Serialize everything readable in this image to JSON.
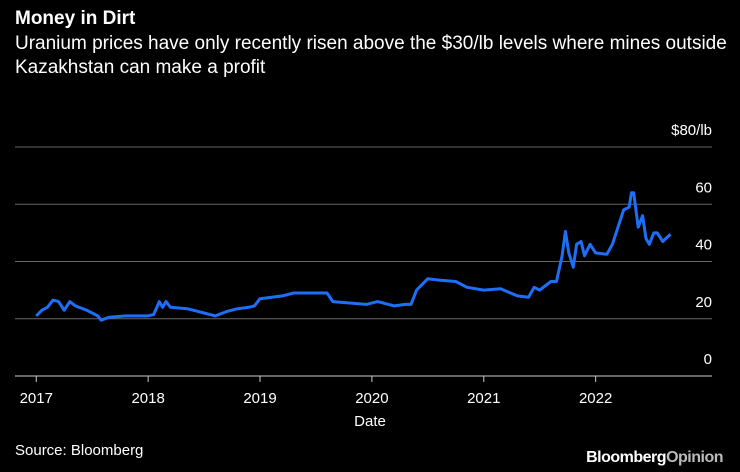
{
  "chart_data": {
    "type": "line",
    "title": "Money in Dirt",
    "subtitle": "Uranium prices have only recently risen above the $30/lb levels where mines outside Kazakhstan can make a profit",
    "x_label": "Date",
    "source": "Source: Bloomberg",
    "logo": [
      "Bloomberg",
      "Opinion"
    ],
    "color": "#1e6ff8",
    "grid": true,
    "x": [
      2017.0,
      2017.05,
      2017.1,
      2017.15,
      2017.2,
      2017.25,
      2017.3,
      2017.35,
      2017.45,
      2017.5,
      2017.55,
      2017.58,
      2017.65,
      2017.8,
      2017.9,
      2018.0,
      2018.05,
      2018.1,
      2018.13,
      2018.16,
      2018.2,
      2018.35,
      2018.5,
      2018.6,
      2018.7,
      2018.8,
      2018.9,
      2018.95,
      2019.0,
      2019.2,
      2019.3,
      2019.45,
      2019.6,
      2019.65,
      2019.8,
      2019.95,
      2020.05,
      2020.15,
      2020.2,
      2020.3,
      2020.35,
      2020.4,
      2020.5,
      2020.6,
      2020.75,
      2020.85,
      2021.0,
      2021.15,
      2021.3,
      2021.4,
      2021.45,
      2021.5,
      2021.6,
      2021.65,
      2021.7,
      2021.73,
      2021.76,
      2021.8,
      2021.83,
      2021.87,
      2021.9,
      2021.95,
      2022.0,
      2022.1,
      2022.15,
      2022.2,
      2022.25,
      2022.3,
      2022.32,
      2022.34,
      2022.38,
      2022.42,
      2022.45,
      2022.48,
      2022.52,
      2022.55,
      2022.6,
      2022.64,
      2022.67
    ],
    "values": [
      21,
      23,
      24,
      26.5,
      26,
      23,
      26,
      24.5,
      23,
      22,
      21,
      19.5,
      20.5,
      21,
      21,
      21,
      21.5,
      26,
      24,
      26,
      24,
      23.5,
      22,
      21,
      22.5,
      23.5,
      24,
      24.5,
      27,
      28,
      29,
      29,
      29,
      26,
      25.5,
      25,
      26,
      25,
      24.5,
      25,
      25,
      30,
      34,
      33.5,
      33,
      31,
      30,
      30.5,
      28,
      27.5,
      31,
      30,
      33,
      33,
      42,
      50.5,
      43,
      38,
      46,
      47,
      42,
      46,
      43,
      42.5,
      46,
      52,
      58,
      59,
      64,
      64,
      52,
      56,
      48,
      46,
      50,
      50,
      47,
      48.5,
      49.5
    ],
    "xlim": [
      2016.81,
      2023.04
    ],
    "xticks": [
      2017,
      2018,
      2019,
      2020,
      2021,
      2022
    ],
    "ylim": [
      0,
      80
    ],
    "yticks": [
      0,
      20,
      40,
      60,
      {
        "value": 80,
        "label": "$80/lb"
      }
    ]
  }
}
